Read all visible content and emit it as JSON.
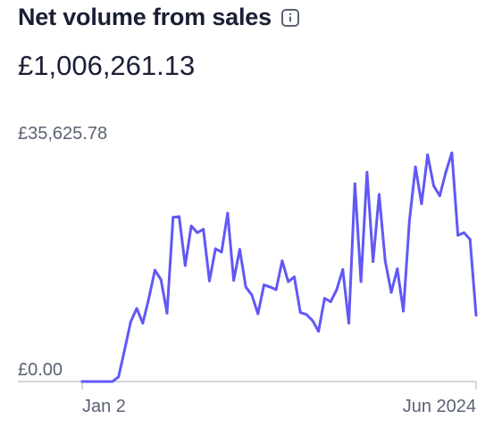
{
  "header": {
    "title": "Net volume from sales",
    "info_icon": "info-icon"
  },
  "summary": {
    "total": "£1,006,261.13"
  },
  "colors": {
    "line": "#6158f5",
    "baseline": "#c5c9d1",
    "text": "#1a1f36",
    "muted": "#5a6273"
  },
  "chart_data": {
    "type": "line",
    "title": "Net volume from sales",
    "y_tick_labels": [
      "£35,625.78",
      "£0.00"
    ],
    "x_tick_labels": [
      "Jan 2",
      "Jun 2024"
    ],
    "ylim": [
      0,
      35625.78
    ],
    "grid": false,
    "series": [
      {
        "values": [
          0,
          0,
          0,
          0,
          0,
          0,
          700,
          4700,
          8900,
          10900,
          8700,
          12400,
          16600,
          15200,
          10200,
          24500,
          24600,
          17300,
          23200,
          22200,
          22700,
          15000,
          19800,
          19300,
          25100,
          15100,
          19700,
          14100,
          12900,
          10100,
          14400,
          14100,
          13700,
          18000,
          14900,
          15600,
          10300,
          10000,
          9100,
          7500,
          12400,
          11900,
          13700,
          16700,
          8700,
          29500,
          14900,
          31200,
          17900,
          27900,
          18000,
          13300,
          16800,
          10500,
          24000,
          32000,
          26500,
          33800,
          29200,
          27700,
          31200,
          34100,
          21800,
          22200,
          21200,
          9900
        ]
      }
    ]
  }
}
